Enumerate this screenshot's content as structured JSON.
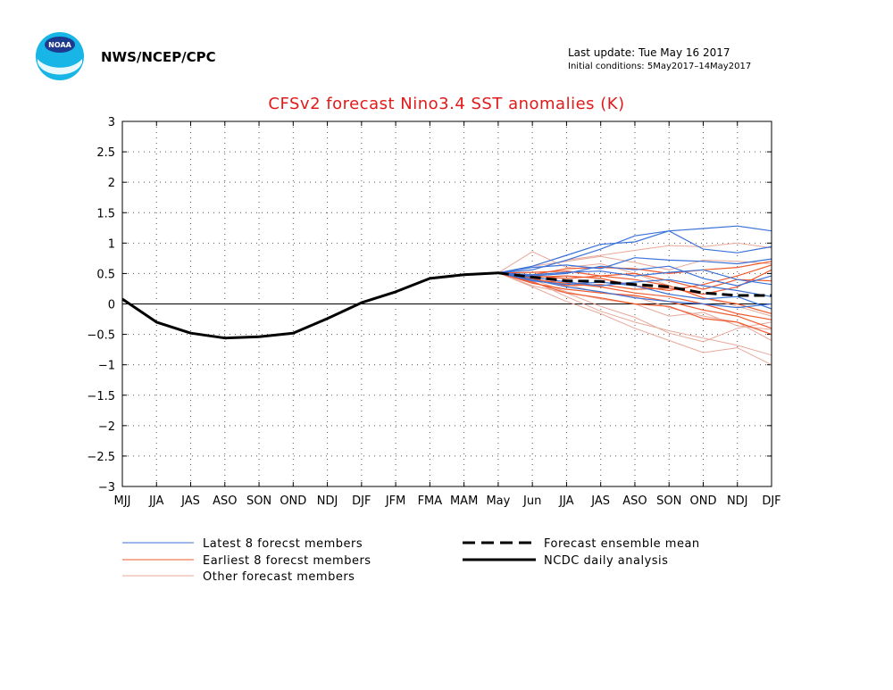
{
  "header": {
    "org": "NWS/NCEP/CPC",
    "logo_text": "NOAA",
    "last_update": "Last update: Tue May 16 2017",
    "initial_conditions": "Initial conditions: 5May2017–14May2017"
  },
  "colors": {
    "title": "#e21a1a",
    "latest": "#3a72d8",
    "earliest": "#ef5a2e",
    "other": "#e7a89a",
    "analysis": "#000000",
    "mean": "#000000"
  },
  "chart_data": {
    "type": "line",
    "title": "CFSv2 forecast Nino3.4 SST anomalies (K)",
    "ylabel": "",
    "xlabel": "",
    "ylim": [
      -3,
      3
    ],
    "yticks": [
      "3",
      "2.5",
      "2",
      "1.5",
      "1",
      "0.5",
      "0",
      "−0.5",
      "−1",
      "−1.5",
      "−2",
      "−2.5",
      "−3"
    ],
    "categories": [
      "MJJ",
      "JJA",
      "JAS",
      "ASO",
      "SON",
      "OND",
      "NDJ",
      "DJF",
      "JFM",
      "FMA",
      "MAM",
      "May",
      "Jun",
      "JJA",
      "JAS",
      "ASO",
      "SON",
      "OND",
      "NDJ",
      "DJF"
    ],
    "grid": true,
    "legend": [
      {
        "label": "Latest 8 forecst members",
        "key": "latest"
      },
      {
        "label": "Earliest 8 forecst members",
        "key": "earliest"
      },
      {
        "label": "Other forecast members",
        "key": "other"
      },
      {
        "label": "Forecast ensemble mean",
        "key": "mean"
      },
      {
        "label": "NCDC daily analysis",
        "key": "analysis"
      }
    ],
    "analysis": {
      "name": "NCDC daily analysis",
      "x": [
        0,
        1,
        2,
        3,
        4,
        5,
        6,
        7,
        8,
        9,
        10,
        11
      ],
      "values": [
        0.08,
        -0.3,
        -0.48,
        -0.56,
        -0.54,
        -0.48,
        -0.24,
        0.02,
        0.2,
        0.42,
        0.48,
        0.51
      ]
    },
    "ensemble_mean": {
      "name": "Forecast ensemble mean",
      "x": [
        11,
        12,
        13,
        14,
        15,
        16,
        17,
        18,
        19
      ],
      "values": [
        0.51,
        0.44,
        0.38,
        0.37,
        0.32,
        0.28,
        0.18,
        0.14,
        0.14
      ]
    },
    "members": {
      "x": [
        11,
        12,
        13,
        14,
        15,
        16,
        17,
        18,
        19
      ],
      "latest": [
        [
          0.51,
          0.62,
          0.8,
          0.98,
          1.02,
          1.2,
          1.24,
          1.28,
          1.2
        ],
        [
          0.51,
          0.56,
          0.72,
          0.9,
          1.12,
          1.2,
          0.9,
          0.84,
          0.94
        ],
        [
          0.51,
          0.6,
          0.64,
          0.58,
          0.76,
          0.72,
          0.7,
          0.66,
          0.74
        ],
        [
          0.51,
          0.48,
          0.52,
          0.54,
          0.46,
          0.52,
          0.56,
          0.4,
          0.32
        ],
        [
          0.51,
          0.44,
          0.36,
          0.3,
          0.36,
          0.4,
          0.3,
          0.22,
          0.12
        ],
        [
          0.51,
          0.4,
          0.28,
          0.2,
          0.1,
          0.04,
          0.0,
          -0.06,
          0.0
        ],
        [
          0.51,
          0.46,
          0.5,
          0.62,
          0.56,
          0.62,
          0.42,
          0.3,
          0.46
        ],
        [
          0.51,
          0.38,
          0.32,
          0.36,
          0.3,
          0.16,
          0.08,
          0.12,
          -0.08
        ]
      ],
      "earliest": [
        [
          0.51,
          0.48,
          0.58,
          0.6,
          0.58,
          0.5,
          0.56,
          0.6,
          0.7
        ],
        [
          0.51,
          0.42,
          0.3,
          0.32,
          0.24,
          0.26,
          0.16,
          0.28,
          0.56
        ],
        [
          0.51,
          0.36,
          0.18,
          0.1,
          0.0,
          -0.04,
          -0.24,
          -0.3,
          -0.5
        ],
        [
          0.51,
          0.46,
          0.42,
          0.46,
          0.4,
          0.3,
          0.1,
          0.0,
          -0.16
        ],
        [
          0.51,
          0.34,
          0.24,
          0.18,
          0.14,
          0.04,
          -0.1,
          -0.2,
          -0.4
        ],
        [
          0.51,
          0.52,
          0.54,
          0.46,
          0.5,
          0.38,
          0.24,
          0.4,
          0.38
        ],
        [
          0.51,
          0.4,
          0.34,
          0.28,
          0.18,
          0.12,
          0.0,
          -0.16,
          -0.26
        ],
        [
          0.51,
          0.44,
          0.46,
          0.42,
          0.3,
          0.22,
          0.32,
          0.46,
          0.64
        ]
      ],
      "other": [
        [
          0.51,
          0.86,
          0.6,
          0.66,
          0.5,
          0.3,
          0.1,
          -0.04,
          -0.2
        ],
        [
          0.51,
          0.38,
          0.12,
          -0.12,
          -0.3,
          -0.44,
          -0.56,
          -0.68,
          -0.84
        ],
        [
          0.51,
          0.28,
          0.04,
          -0.16,
          -0.4,
          -0.6,
          -0.8,
          -0.72,
          -1.0
        ],
        [
          0.51,
          0.56,
          0.72,
          0.8,
          0.88,
          0.96,
          0.94,
          1.0,
          0.92
        ],
        [
          0.51,
          0.3,
          0.18,
          -0.04,
          -0.22,
          -0.48,
          -0.62,
          -0.4,
          -0.3
        ],
        [
          0.51,
          0.46,
          0.32,
          0.18,
          0.12,
          -0.06,
          -0.2,
          -0.3,
          -0.6
        ],
        [
          0.51,
          0.62,
          0.7,
          0.78,
          0.68,
          0.56,
          0.72,
          0.7,
          0.66
        ],
        [
          0.51,
          0.4,
          0.2,
          0.08,
          0.0,
          -0.2,
          -0.14,
          -0.36,
          -0.42
        ]
      ]
    }
  },
  "legend_text": {
    "latest": "Latest 8 forecst members",
    "earliest": "Earliest 8 forecst members",
    "other": "Other forecast members",
    "mean": "Forecast ensemble mean",
    "analysis": "NCDC daily analysis"
  }
}
